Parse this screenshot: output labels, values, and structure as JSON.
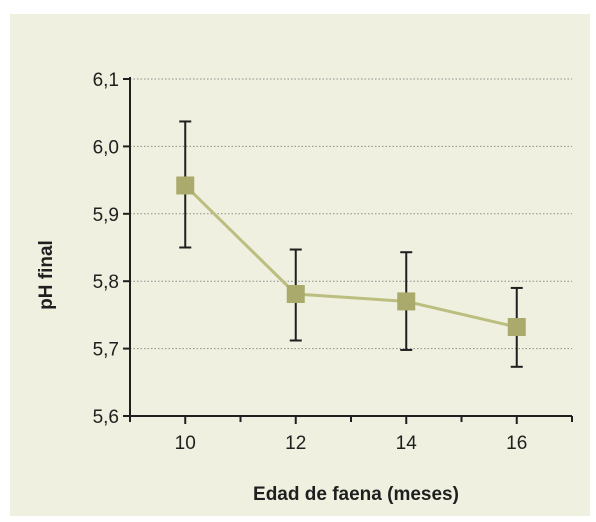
{
  "chart_data": {
    "type": "line",
    "title": "",
    "xlabel": "Edad de faena (meses)",
    "ylabel": "pH final",
    "x": [
      10,
      12,
      14,
      16
    ],
    "x_tick_labels": [
      "10",
      "12",
      "14",
      "16"
    ],
    "xlim": [
      9,
      17
    ],
    "y_ticks": [
      5.6,
      5.7,
      5.8,
      5.9,
      6.0,
      6.1
    ],
    "y_tick_labels": [
      "5,6",
      "5,7",
      "5,8",
      "5,9",
      "6,0",
      "6,1"
    ],
    "ylim": [
      5.6,
      6.1
    ],
    "grid": "horizontal dotted",
    "series": [
      {
        "values": [
          5.942,
          5.781,
          5.77,
          5.732
        ],
        "error_low": [
          5.85,
          5.712,
          5.698,
          5.673
        ],
        "error_high": [
          6.037,
          5.847,
          5.843,
          5.79
        ],
        "color": "#a9aa6b",
        "line_color": "#bcbe80",
        "marker": "square"
      }
    ]
  },
  "colors": {
    "background": "#eff0df",
    "axis": "#1f1f1f",
    "grid": "#8c8c8c"
  }
}
